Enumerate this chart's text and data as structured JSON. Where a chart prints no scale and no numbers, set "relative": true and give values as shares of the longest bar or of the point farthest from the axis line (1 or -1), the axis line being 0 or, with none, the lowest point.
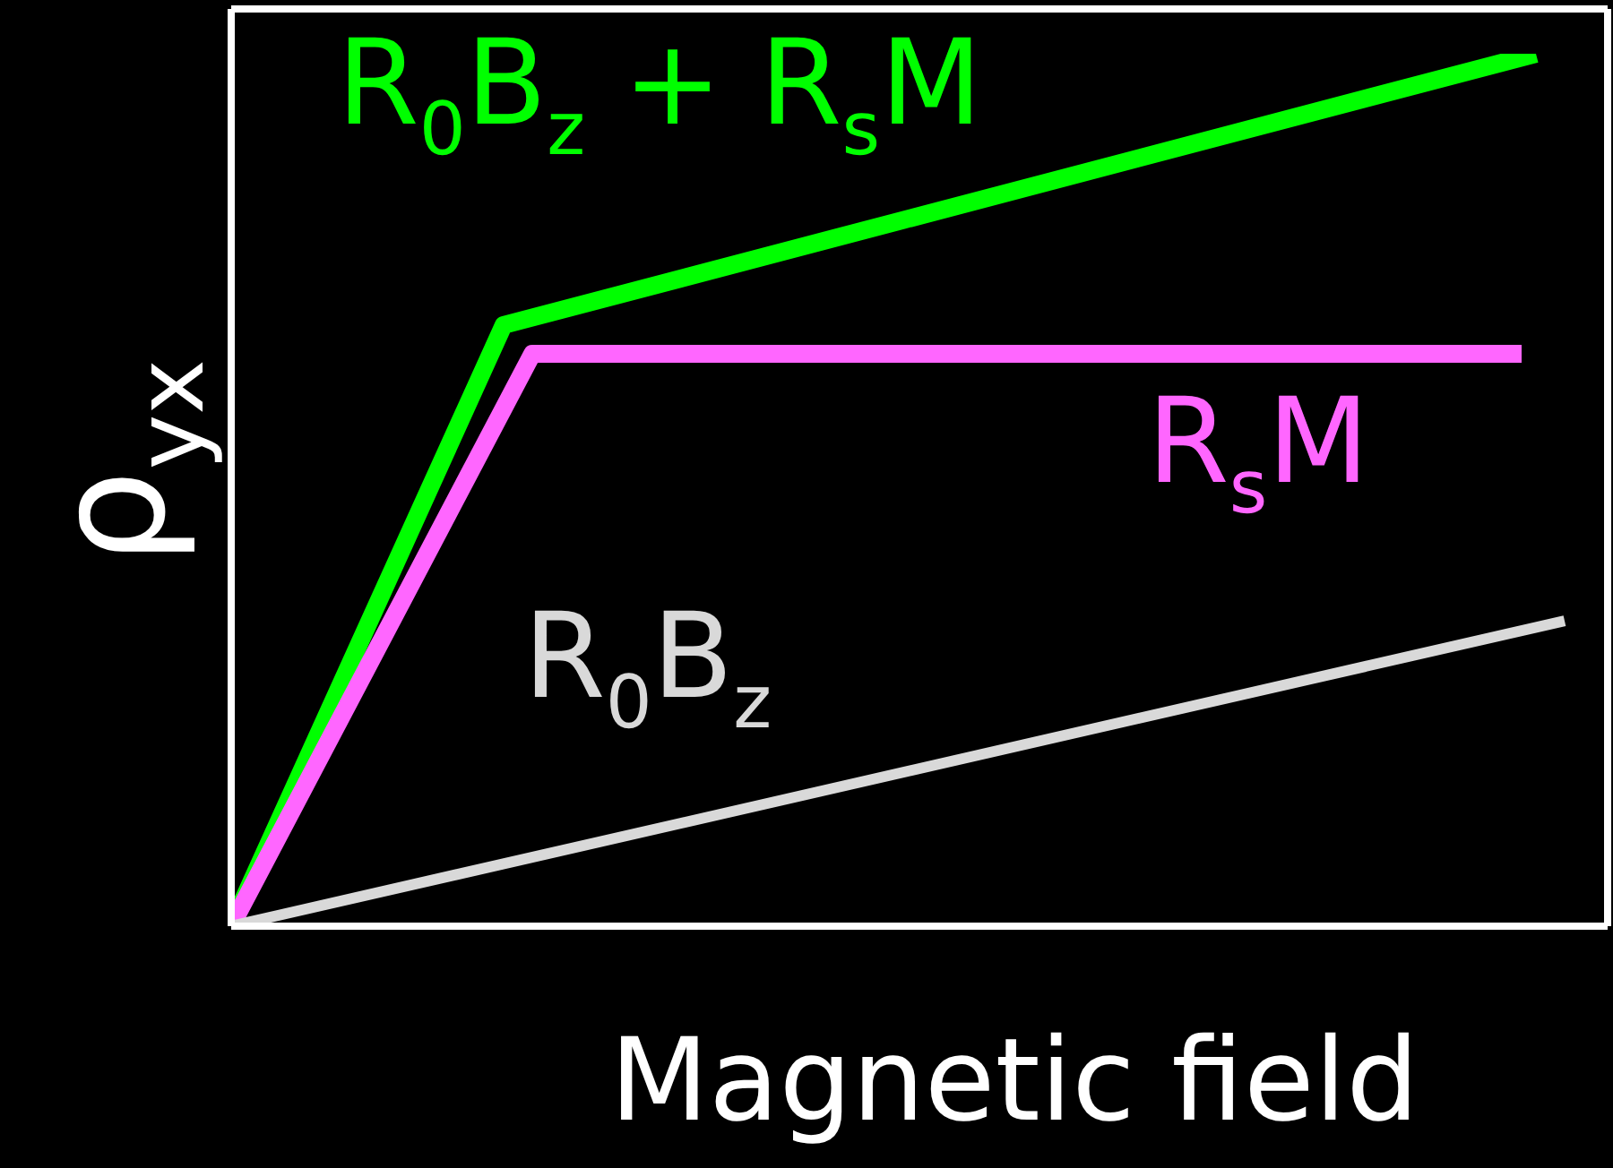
{
  "chart_data": {
    "type": "line",
    "relative": true,
    "xlabel": "Magnetic field",
    "ylabel": "ρ$_{yx}$",
    "categories": [
      null,
      null,
      null,
      null,
      null,
      null,
      null,
      null,
      null,
      null,
      null,
      null,
      null,
      null,
      null,
      null,
      null,
      null,
      null,
      null,
      null,
      null,
      null,
      null,
      null,
      null,
      null,
      null,
      null,
      null,
      null,
      null,
      null,
      null,
      null,
      null,
      null,
      null,
      null,
      null,
      null,
      null,
      null,
      null,
      null,
      null,
      null,
      null,
      null,
      null,
      null,
      null,
      null,
      null,
      null,
      null,
      null,
      null,
      null,
      null,
      null,
      null,
      null,
      null,
      null,
      null,
      null,
      null,
      null,
      null,
      null,
      null,
      null,
      null,
      null,
      null,
      null,
      null,
      null,
      null,
      null,
      null,
      null,
      null,
      null,
      null,
      null,
      null,
      null,
      null,
      null,
      null,
      null,
      null,
      null,
      null,
      null
    ],
    "series": [
      {
        "name": "R$_{0}$B$_{z}$ + R$_{s}$M",
        "color": "#00ff00",
        "values": [
          0,
          null,
          null,
          null,
          null,
          null,
          null,
          null,
          null,
          null,
          null,
          null,
          null,
          null,
          null,
          null,
          null,
          null,
          null,
          0.689,
          null,
          null,
          null,
          null,
          null,
          null,
          null,
          null,
          null,
          null,
          null,
          null,
          null,
          null,
          null,
          null,
          null,
          null,
          null,
          null,
          null,
          null,
          null,
          null,
          null,
          null,
          null,
          null,
          null,
          null,
          null,
          null,
          null,
          null,
          null,
          null,
          null,
          null,
          null,
          null,
          null,
          null,
          null,
          null,
          null,
          null,
          null,
          null,
          null,
          null,
          null,
          null,
          null,
          null,
          null,
          null,
          null,
          null,
          null,
          null,
          null,
          null,
          null,
          null,
          null,
          null,
          null,
          null,
          null,
          null,
          null,
          1,
          null,
          null,
          null,
          null,
          null
        ]
      },
      {
        "name": "R$_{s}$M",
        "color": "#ff66ff",
        "values": [
          0,
          null,
          null,
          null,
          null,
          null,
          null,
          null,
          null,
          null,
          null,
          null,
          null,
          null,
          null,
          null,
          null,
          null,
          null,
          null,
          null,
          0.656,
          null,
          null,
          null,
          null,
          null,
          null,
          null,
          null,
          null,
          null,
          null,
          null,
          null,
          null,
          null,
          null,
          null,
          null,
          null,
          null,
          null,
          null,
          null,
          null,
          null,
          null,
          null,
          null,
          null,
          null,
          null,
          null,
          null,
          null,
          null,
          null,
          null,
          null,
          null,
          null,
          null,
          null,
          null,
          null,
          null,
          null,
          null,
          null,
          null,
          null,
          null,
          null,
          null,
          null,
          null,
          null,
          null,
          null,
          null,
          null,
          null,
          null,
          null,
          null,
          null,
          null,
          null,
          null,
          0.656,
          null,
          null,
          null,
          null,
          null,
          null
        ]
      },
      {
        "name": "R$_{0}$B$_{z}$",
        "color": "#d9d9d9",
        "values": [
          0,
          null,
          null,
          null,
          null,
          null,
          null,
          null,
          null,
          null,
          null,
          null,
          null,
          null,
          null,
          null,
          null,
          null,
          null,
          null,
          null,
          null,
          null,
          null,
          null,
          null,
          null,
          null,
          null,
          null,
          null,
          null,
          null,
          null,
          null,
          null,
          null,
          null,
          null,
          null,
          null,
          null,
          null,
          null,
          null,
          null,
          null,
          null,
          null,
          null,
          null,
          null,
          null,
          null,
          null,
          null,
          null,
          null,
          null,
          null,
          null,
          null,
          null,
          null,
          null,
          null,
          null,
          null,
          null,
          null,
          null,
          null,
          null,
          null,
          null,
          null,
          null,
          null,
          null,
          null,
          null,
          null,
          null,
          null,
          null,
          null,
          null,
          null,
          null,
          null,
          null,
          null,
          null,
          0.35,
          null,
          null,
          null
        ]
      }
    ]
  }
}
